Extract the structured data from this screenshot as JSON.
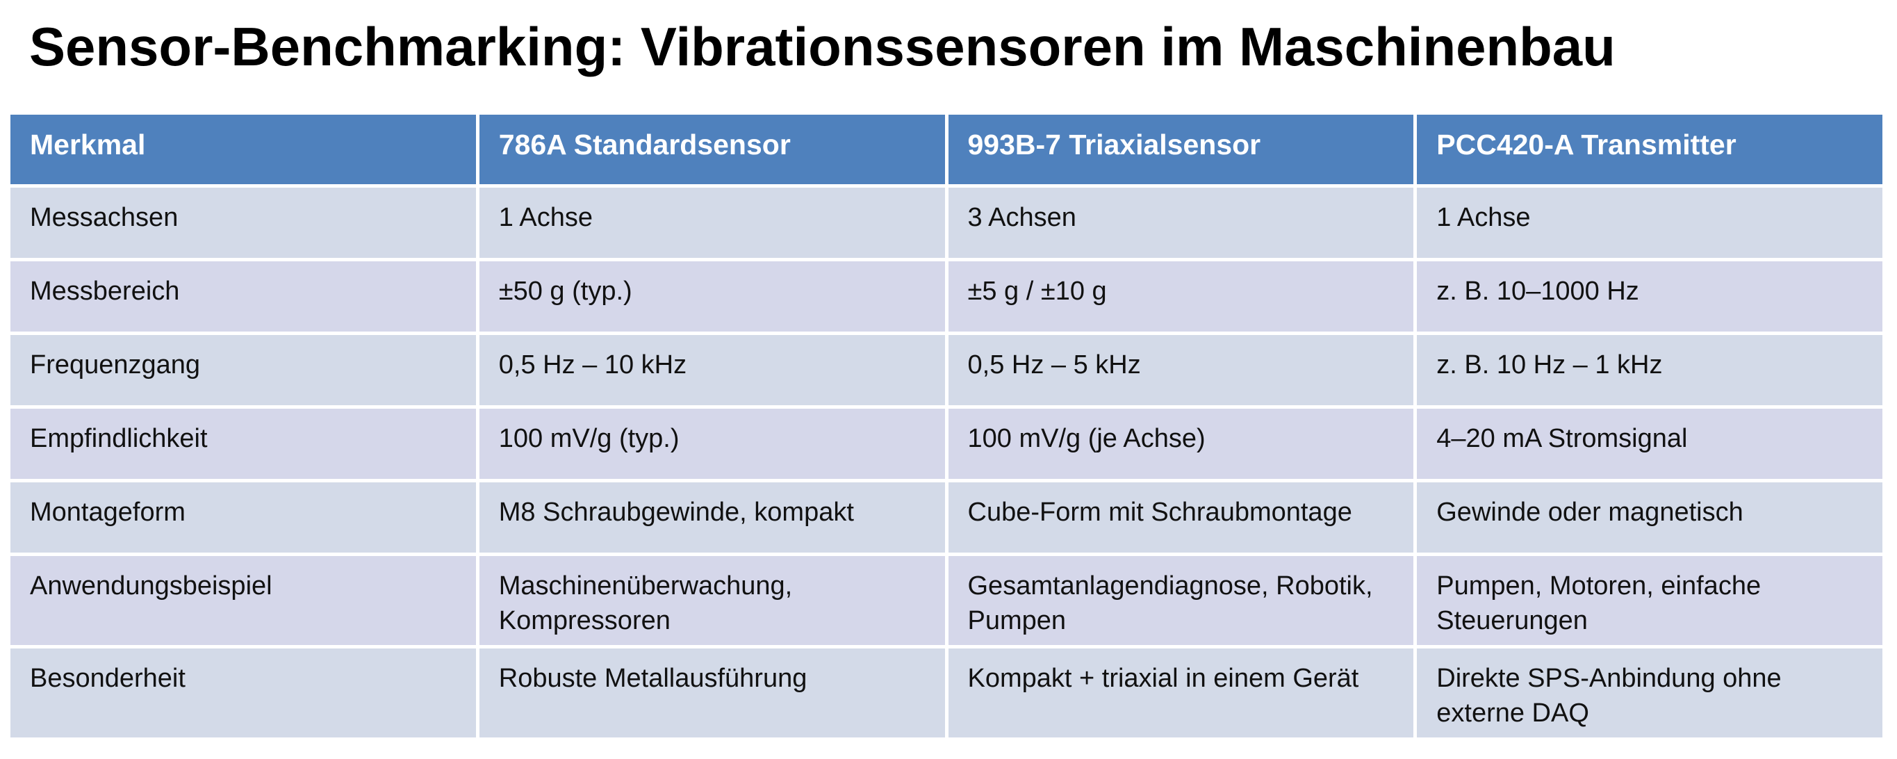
{
  "header": {
    "title": "Sensor-Benchmarking: Vibrationssensoren im Maschinenbau"
  },
  "table": {
    "columns": [
      "Merkmal",
      "786A Standardsensor",
      "993B-7 Triaxialsensor",
      "PCC420-A Transmitter"
    ],
    "rows": [
      [
        "Messachsen",
        "1 Achse",
        "3 Achsen",
        "1 Achse"
      ],
      [
        "Messbereich",
        "±50 g (typ.)",
        "±5 g / ±10 g",
        "z. B. 10–1000 Hz"
      ],
      [
        "Frequenzgang",
        "0,5 Hz – 10 kHz",
        "0,5 Hz – 5 kHz",
        "z. B. 10 Hz – 1 kHz"
      ],
      [
        "Empfindlichkeit",
        "100 mV/g (typ.)",
        "100 mV/g (je Achse)",
        "4–20 mA Stromsignal"
      ],
      [
        "Montageform",
        "M8 Schraubgewinde, kompakt",
        "Cube-Form mit Schraubmontage",
        "Gewinde oder magnetisch"
      ],
      [
        "Anwendungsbeispiel",
        "Maschinenüberwachung, Kompressoren",
        "Gesamtanlagendiagnose, Robotik, Pumpen",
        "Pumpen, Motoren, einfache Steuerungen"
      ],
      [
        "Besonderheit",
        "Robuste Metallausführung",
        "Kompakt + triaxial in einem Gerät",
        "Direkte SPS-Anbindung ohne externe DAQ"
      ]
    ]
  }
}
